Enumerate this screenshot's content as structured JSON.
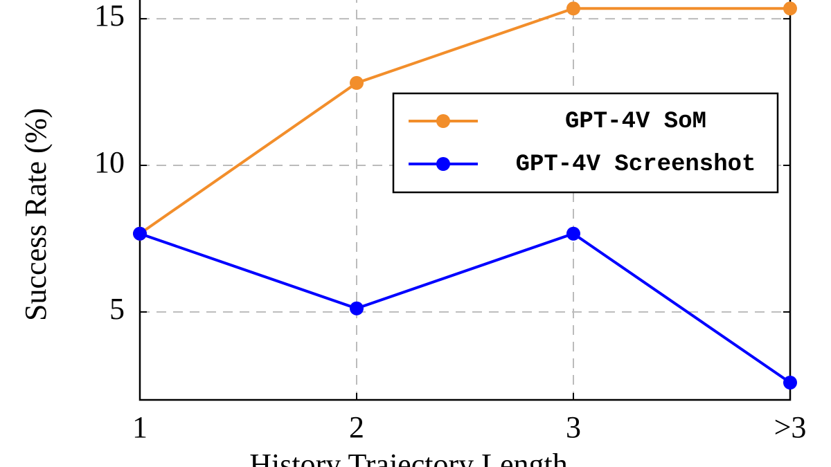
{
  "chart_data": {
    "type": "line",
    "categories": [
      "1",
      "2",
      "3",
      ">3"
    ],
    "series": [
      {
        "name": "GPT-4V SoM",
        "color": "#f28e2b",
        "values": [
          7.67,
          12.81,
          15.35,
          15.35
        ]
      },
      {
        "name": "GPT-4V Screenshot",
        "color": "#0000ff",
        "values": [
          7.67,
          5.12,
          7.67,
          2.59
        ]
      }
    ],
    "xlabel": "History Trajectory Length",
    "ylabel": "Success Rate (%)",
    "ylim": [
      2,
      15.64
    ],
    "yticks": [
      5,
      10,
      15
    ],
    "grid": true,
    "legend": "upper-right"
  }
}
